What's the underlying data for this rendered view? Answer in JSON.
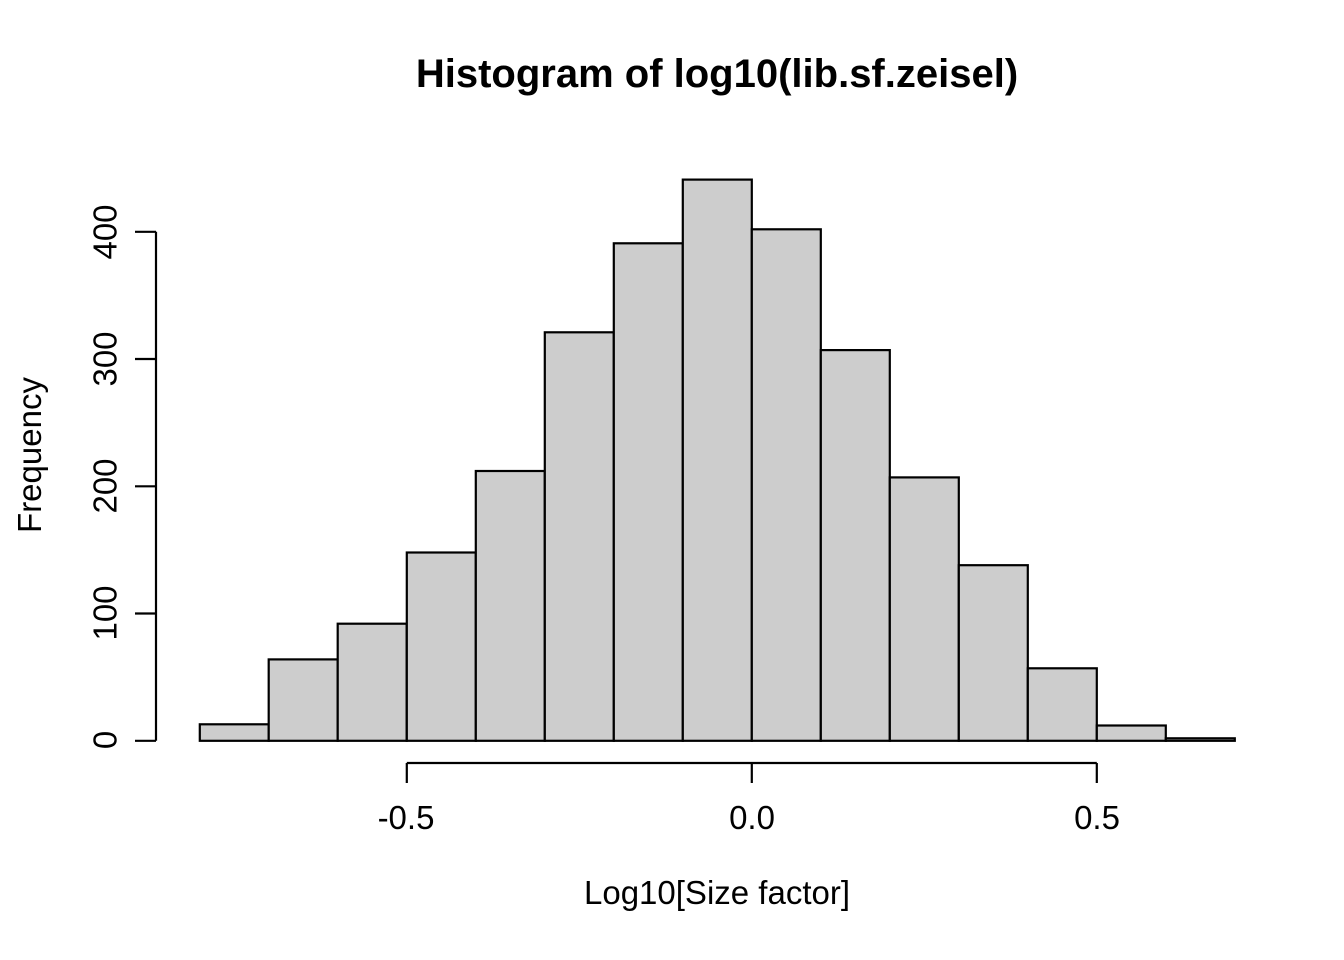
{
  "page": {
    "background": "#ffffff"
  },
  "chart_data": {
    "type": "bar",
    "subtype": "histogram",
    "title": "Histogram of log10(lib.sf.zeisel)",
    "xlabel": "Log10[Size factor]",
    "ylabel": "Frequency",
    "bin_start": -0.8,
    "bin_width": 0.1,
    "bin_edges": [
      -0.8,
      -0.7,
      -0.6,
      -0.5,
      -0.4,
      -0.3,
      -0.2,
      -0.1,
      0.0,
      0.1,
      0.2,
      0.3,
      0.4,
      0.5,
      0.6,
      0.7
    ],
    "values": [
      13,
      64,
      92,
      148,
      212,
      321,
      391,
      441,
      402,
      307,
      207,
      138,
      57,
      12,
      2
    ],
    "x_ticks": [
      -0.5,
      0.0,
      0.5
    ],
    "x_tick_labels": [
      "-0.5",
      "0.0",
      "0.5"
    ],
    "y_ticks": [
      0,
      100,
      200,
      300,
      400
    ],
    "y_tick_labels": [
      "0",
      "100",
      "200",
      "300",
      "400"
    ],
    "xlim": [
      -0.8,
      0.7
    ],
    "ylim": [
      0,
      450
    ],
    "grid": false,
    "legend": null,
    "bar_fill": "#CDCDCD",
    "bar_border": "#000000",
    "axis_color": "#000000",
    "text_color": "#000000"
  }
}
